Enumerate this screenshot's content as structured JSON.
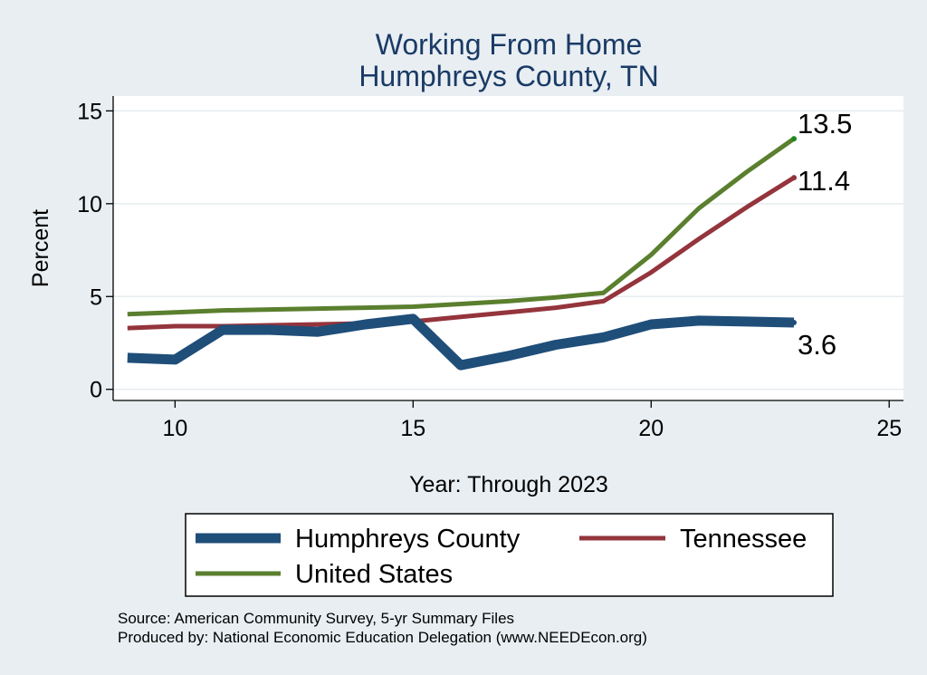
{
  "chart_data": {
    "type": "line",
    "title": "Working From Home",
    "subtitle": "Humphreys County, TN",
    "xlabel": "Year: Through 2023",
    "ylabel": "Percent",
    "xlim": [
      8.7,
      25.3
    ],
    "ylim": [
      -0.6,
      15.8
    ],
    "xticks": [
      10,
      15,
      20,
      25
    ],
    "yticks": [
      0,
      5,
      10,
      15
    ],
    "grid": true,
    "legend_position": "bottom",
    "x": [
      9,
      10,
      11,
      12,
      13,
      14,
      15,
      16,
      17,
      18,
      19,
      20,
      21,
      22,
      23
    ],
    "series": [
      {
        "name": "Humphreys County",
        "color": "#1f4e79",
        "values": [
          1.7,
          1.6,
          3.2,
          3.2,
          3.1,
          3.5,
          3.8,
          1.3,
          1.8,
          2.4,
          2.8,
          3.5,
          3.7,
          3.65,
          3.6
        ],
        "end_label": "3.6"
      },
      {
        "name": "Tennessee",
        "color": "#94343c",
        "values": [
          3.3,
          3.4,
          3.4,
          3.45,
          3.5,
          3.55,
          3.65,
          3.9,
          4.15,
          4.4,
          4.75,
          6.3,
          8.1,
          9.8,
          11.4
        ],
        "end_label": "11.4"
      },
      {
        "name": "United States",
        "color": "#5a7f2e",
        "values": [
          4.05,
          4.15,
          4.25,
          4.3,
          4.35,
          4.4,
          4.45,
          4.6,
          4.75,
          4.95,
          5.2,
          7.25,
          9.75,
          11.7,
          13.5
        ],
        "end_label": "13.5"
      }
    ],
    "notes": [
      "Source: American Community Survey, 5-yr Summary Files",
      "Produced by: National Economic Education Delegation (www.NEEDEcon.org)"
    ]
  }
}
